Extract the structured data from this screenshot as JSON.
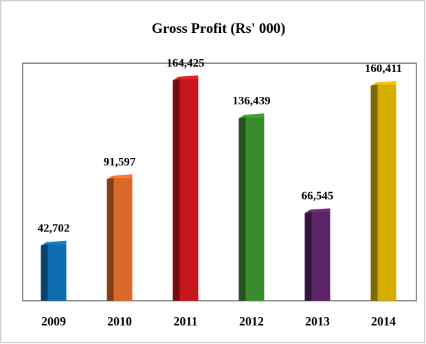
{
  "chart_data": {
    "type": "bar3d",
    "title": "Gross Profit (Rs' 000)",
    "categories": [
      "2009",
      "2010",
      "2011",
      "2012",
      "2013",
      "2014"
    ],
    "values": [
      42702,
      91597,
      164425,
      136439,
      66545,
      160411
    ],
    "value_labels": [
      "42,702",
      "91,597",
      "164,425",
      "136,439",
      "66,545",
      "160,411"
    ],
    "colors": [
      "#0e6eb0",
      "#d9682a",
      "#c4161c",
      "#3a8a2e",
      "#5b2466",
      "#d4ad00"
    ],
    "ylim": [
      0,
      175000
    ]
  }
}
